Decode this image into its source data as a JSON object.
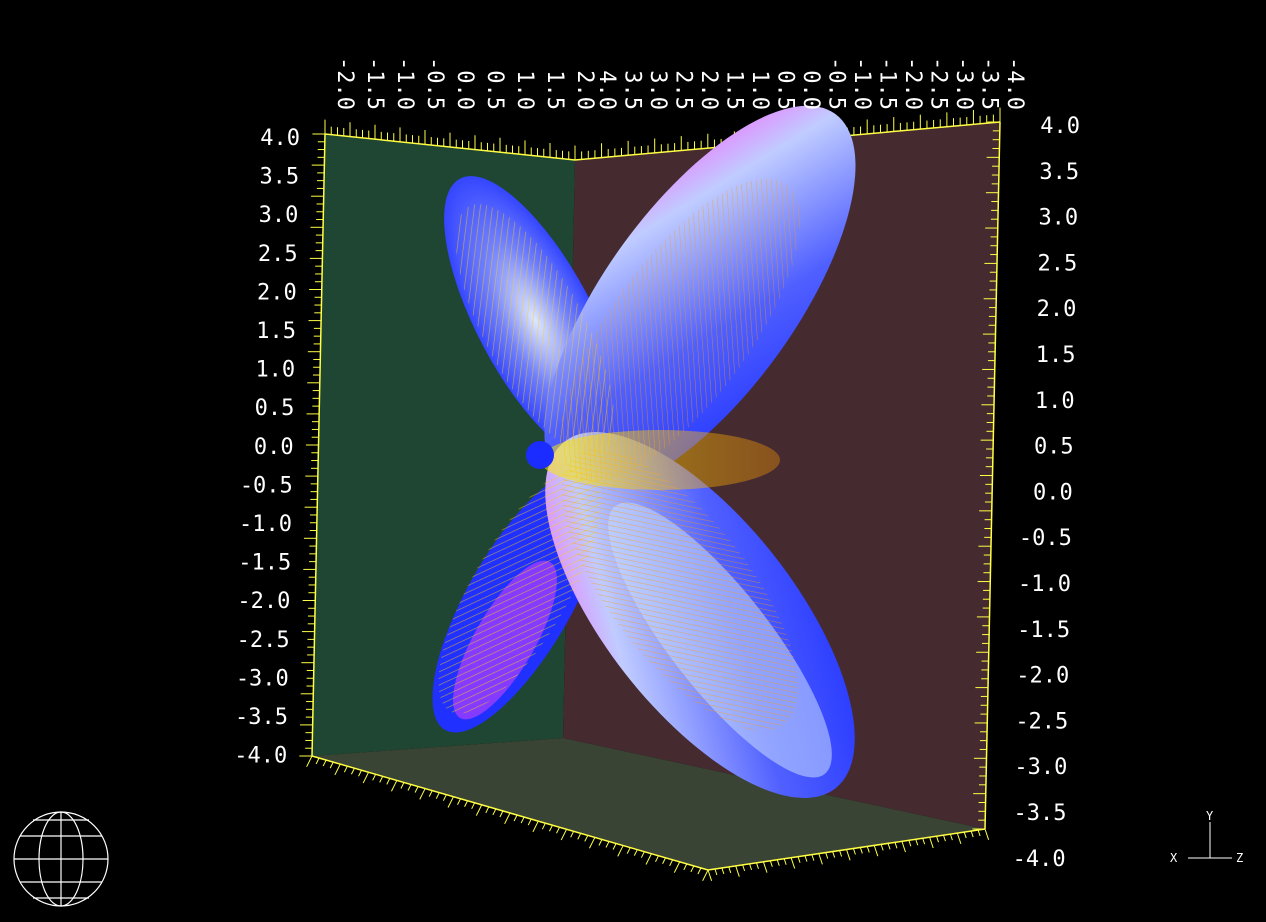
{
  "viewer": {
    "left_axis_labels": [
      "4.0",
      "3.5",
      "3.0",
      "2.5",
      "2.0",
      "1.5",
      "1.0",
      "0.5",
      "0.0",
      "-0.5",
      "-1.0",
      "-1.5",
      "-2.0",
      "-2.5",
      "-3.0",
      "-3.5",
      "-4.0"
    ],
    "right_axis_labels": [
      "4.0",
      "3.5",
      "3.0",
      "2.5",
      "2.0",
      "1.5",
      "1.0",
      "0.5",
      "0.0",
      "-0.5",
      "-1.0",
      "-1.5",
      "-2.0",
      "-2.5",
      "-3.0",
      "-3.5",
      "-4.0"
    ],
    "top_left_labels": [
      "-2.0",
      "-1.5",
      "-1.0",
      "-0.5",
      "0.0",
      "0.5",
      "1.0",
      "1.5",
      "2.0"
    ],
    "top_right_labels": [
      "4.0",
      "3.5",
      "3.0",
      "2.5",
      "2.0",
      "1.5",
      "1.0",
      "0.5",
      "0.0",
      "-0.5",
      "-1.0",
      "-1.5",
      "-2.0",
      "-2.5",
      "-3.0",
      "-3.5",
      "-4.0"
    ],
    "axis_triad": {
      "x": "X",
      "y": "Y",
      "z": "Z"
    },
    "colors": {
      "background": "#000000",
      "back_wall_left": "#1f4632",
      "back_wall_right": "#452a30",
      "floor": "#3a4434",
      "ticks": "#ffff44",
      "surface_blue": "#1a2cff",
      "surface_magenta": "#ff3cff",
      "surface_light": "#c8dcff",
      "vector_yellow": "#ffee00",
      "vector_orange": "#ff8c00"
    },
    "icons": [
      "rotation-sphere-icon",
      "axis-triad-icon"
    ]
  }
}
